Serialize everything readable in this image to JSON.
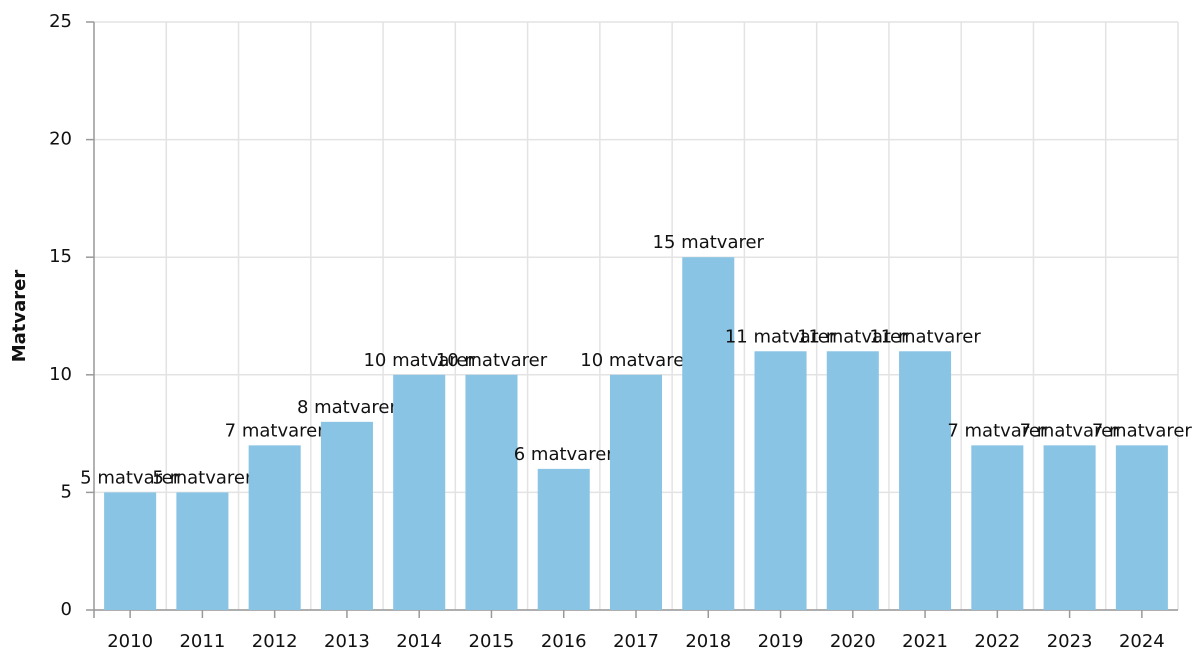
{
  "chart_data": {
    "type": "bar",
    "y_label": "Matvarer",
    "categories": [
      "2010",
      "2011",
      "2012",
      "2013",
      "2014",
      "2015",
      "2016",
      "2017",
      "2018",
      "2019",
      "2020",
      "2021",
      "2022",
      "2023",
      "2024"
    ],
    "values": [
      5,
      5,
      7,
      8,
      10,
      10,
      6,
      10,
      15,
      11,
      11,
      11,
      7,
      7,
      7
    ],
    "value_labels": [
      "5 matvarer",
      "5 matvarer",
      "7 matvarer",
      "8 matvarer",
      "10 matvarer",
      "10 matvarer",
      "6 matvarer",
      "10 matvarer",
      "15 matvarer",
      "11 matvarer",
      "11 matvarer",
      "11 matvarer",
      "7 matvarer",
      "7 matvarer",
      "7 matvarer"
    ],
    "color": "#89c4e4",
    "ylim": [
      0,
      25
    ],
    "yticks": [
      0,
      5,
      10,
      15,
      20,
      25
    ],
    "grid": true
  }
}
